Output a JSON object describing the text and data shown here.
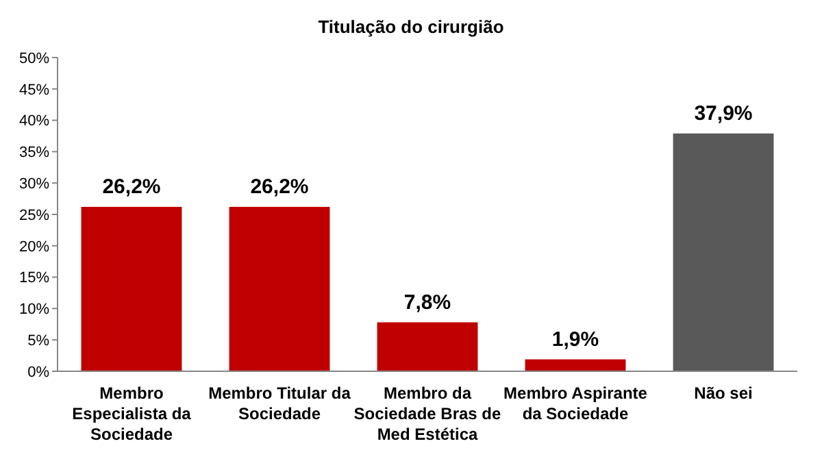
{
  "chart_data": {
    "type": "bar",
    "title": "Titulação do cirurgião",
    "categories": [
      "Membro Especialista da Sociedade",
      "Membro Titular da Sociedade",
      "Membro da Sociedade Bras de Med Estética",
      "Membro Aspirante da Sociedade",
      "Não sei"
    ],
    "values": [
      26.2,
      26.2,
      7.8,
      1.9,
      37.9
    ],
    "colors": [
      "#c00000",
      "#c00000",
      "#c00000",
      "#c00000",
      "#595959"
    ],
    "value_labels": [
      "26,2%",
      "26,2%",
      "7,8%",
      "1,9%",
      "37,9%"
    ],
    "ylim": [
      0,
      50
    ],
    "yticks": [
      {
        "value": 0,
        "label": "0%"
      },
      {
        "value": 5,
        "label": "5%"
      },
      {
        "value": 10,
        "label": "10%"
      },
      {
        "value": 15,
        "label": "15%"
      },
      {
        "value": 20,
        "label": "20%"
      },
      {
        "value": 25,
        "label": "25%"
      },
      {
        "value": 30,
        "label": "30%"
      },
      {
        "value": 35,
        "label": "35%"
      },
      {
        "value": 40,
        "label": "40%"
      },
      {
        "value": 45,
        "label": "45%"
      },
      {
        "value": 50,
        "label": "50%"
      }
    ],
    "grid": false
  }
}
